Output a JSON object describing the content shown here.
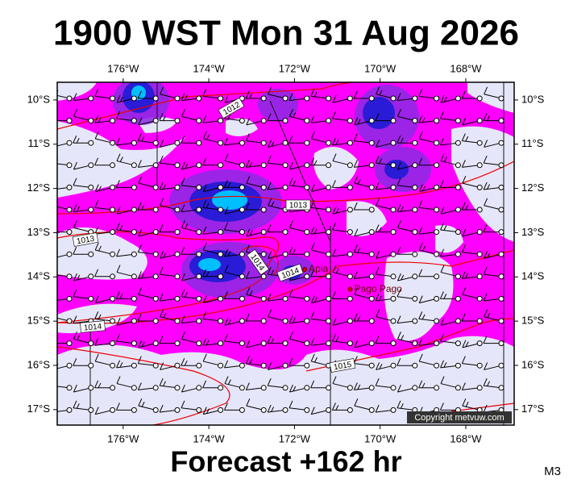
{
  "header": {
    "title": "1900 WST Mon 31 Aug 2026"
  },
  "map": {
    "lon_range": [
      -177.54,
      -166.87
    ],
    "lat_range": [
      -9.6,
      -17.35
    ],
    "lon_ticks": [
      {
        "value": -176,
        "label": "176°W"
      },
      {
        "value": -174,
        "label": "174°W"
      },
      {
        "value": -172,
        "label": "172°W"
      },
      {
        "value": -170,
        "label": "170°W"
      },
      {
        "value": -168,
        "label": "168°W"
      }
    ],
    "lat_ticks": [
      {
        "value": -10,
        "label": "10°S"
      },
      {
        "value": -11,
        "label": "11°S"
      },
      {
        "value": -12,
        "label": "12°S"
      },
      {
        "value": -13,
        "label": "13°S"
      },
      {
        "value": -14,
        "label": "14°S"
      },
      {
        "value": -15,
        "label": "15°S"
      },
      {
        "value": -16,
        "label": "16°S"
      },
      {
        "value": -17,
        "label": "17°S"
      }
    ],
    "places": [
      {
        "name": "Apia",
        "lon": -171.76,
        "lat": -13.83
      },
      {
        "name": "Pago Pago",
        "lon": -170.7,
        "lat": -14.28
      }
    ],
    "isobar_labels": [
      "1012",
      "1013",
      "1013",
      "1014",
      "1014",
      "1014",
      "1015"
    ],
    "copyright": "Copyright metvuw.com"
  },
  "footer": {
    "forecast": "Forecast +162 hr",
    "model": "M3"
  }
}
